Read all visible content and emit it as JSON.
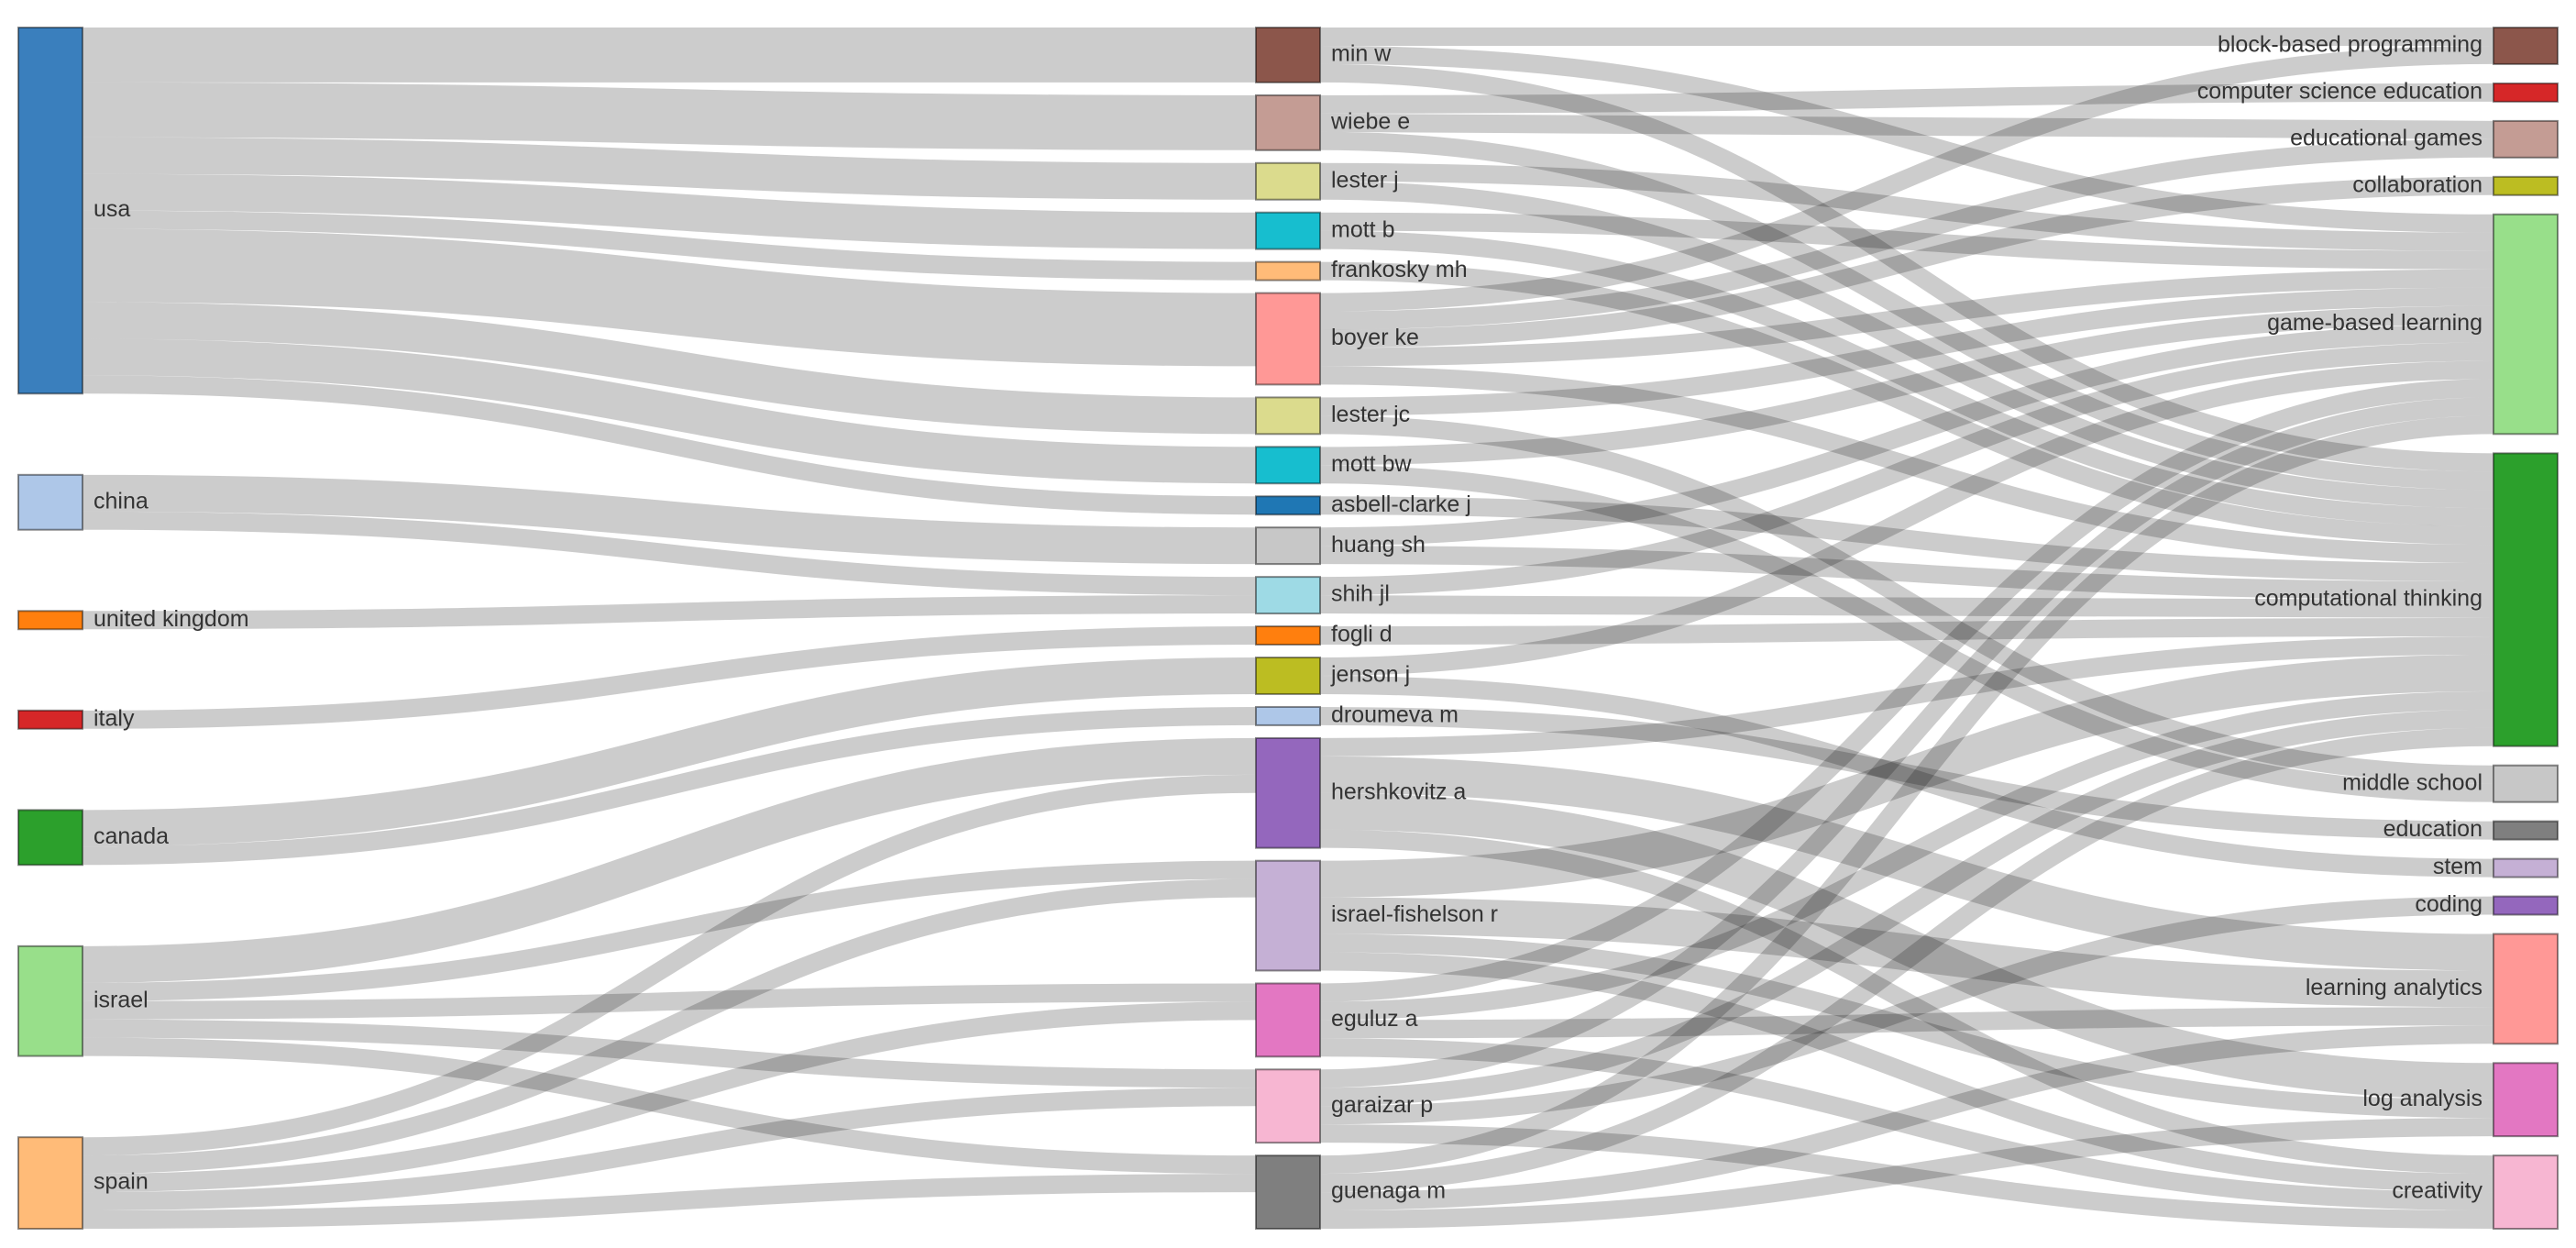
{
  "chart_data": {
    "type": "sankey",
    "columns": [
      [
        {
          "label": "usa",
          "color": "#3a7fbd"
        },
        {
          "label": "china",
          "color": "#aec7e8"
        },
        {
          "label": "united kingdom",
          "color": "#ff7f0e"
        },
        {
          "label": "italy",
          "color": "#d62728"
        },
        {
          "label": "canada",
          "color": "#2ca02c"
        },
        {
          "label": "israel",
          "color": "#98df8a"
        },
        {
          "label": "spain",
          "color": "#ffbb78"
        }
      ],
      [
        {
          "label": "min w",
          "color": "#8c564b"
        },
        {
          "label": "wiebe e",
          "color": "#c49c94"
        },
        {
          "label": "lester j",
          "color": "#dbdb8d"
        },
        {
          "label": "mott b",
          "color": "#17becf"
        },
        {
          "label": "frankosky mh",
          "color": "#ffbb78"
        },
        {
          "label": "boyer ke",
          "color": "#ff9896"
        },
        {
          "label": "lester jc",
          "color": "#dbdb8d"
        },
        {
          "label": "mott bw",
          "color": "#17becf"
        },
        {
          "label": "asbell-clarke j",
          "color": "#1f77b4"
        },
        {
          "label": "huang sh",
          "color": "#c7c7c7"
        },
        {
          "label": "shih jl",
          "color": "#9edae5"
        },
        {
          "label": "fogli d",
          "color": "#ff7f0e"
        },
        {
          "label": "jenson j",
          "color": "#bcbd22"
        },
        {
          "label": "droumeva m",
          "color": "#aec7e8"
        },
        {
          "label": "hershkovitz a",
          "color": "#9467bd"
        },
        {
          "label": "israel-fishelson r",
          "color": "#c5b0d5"
        },
        {
          "label": "eguluz a",
          "color": "#e377c2"
        },
        {
          "label": "garaizar p",
          "color": "#f7b6d2"
        },
        {
          "label": "guenaga m",
          "color": "#7f7f7f"
        }
      ],
      [
        {
          "label": "block-based programming",
          "color": "#8c564b"
        },
        {
          "label": "computer science education",
          "color": "#d62728"
        },
        {
          "label": "educational games",
          "color": "#c49c94"
        },
        {
          "label": "collaboration",
          "color": "#bcbd22"
        },
        {
          "label": "game-based learning",
          "color": "#98df8a"
        },
        {
          "label": "computational thinking",
          "color": "#2ca02c"
        },
        {
          "label": "middle school",
          "color": "#c7c7c7"
        },
        {
          "label": "education",
          "color": "#7f7f7f"
        },
        {
          "label": "stem",
          "color": "#c5b0d5"
        },
        {
          "label": "coding",
          "color": "#9467bd"
        },
        {
          "label": "learning analytics",
          "color": "#ff9896"
        },
        {
          "label": "log analysis",
          "color": "#e377c2"
        },
        {
          "label": "creativity",
          "color": "#f7b6d2"
        }
      ]
    ],
    "links": [
      {
        "source": "usa",
        "target": "min w",
        "value": 3
      },
      {
        "source": "usa",
        "target": "wiebe e",
        "value": 3
      },
      {
        "source": "usa",
        "target": "lester j",
        "value": 2
      },
      {
        "source": "usa",
        "target": "mott b",
        "value": 2
      },
      {
        "source": "usa",
        "target": "frankosky mh",
        "value": 1
      },
      {
        "source": "usa",
        "target": "boyer ke",
        "value": 4
      },
      {
        "source": "usa",
        "target": "lester jc",
        "value": 2
      },
      {
        "source": "usa",
        "target": "mott bw",
        "value": 2
      },
      {
        "source": "usa",
        "target": "asbell-clarke j",
        "value": 1
      },
      {
        "source": "china",
        "target": "huang sh",
        "value": 2
      },
      {
        "source": "china",
        "target": "shih jl",
        "value": 1
      },
      {
        "source": "united kingdom",
        "target": "shih jl",
        "value": 1
      },
      {
        "source": "italy",
        "target": "fogli d",
        "value": 1
      },
      {
        "source": "canada",
        "target": "jenson j",
        "value": 2
      },
      {
        "source": "canada",
        "target": "droumeva m",
        "value": 1
      },
      {
        "source": "israel",
        "target": "hershkovitz a",
        "value": 2
      },
      {
        "source": "israel",
        "target": "israel-fishelson r",
        "value": 1
      },
      {
        "source": "israel",
        "target": "eguluz a",
        "value": 1
      },
      {
        "source": "israel",
        "target": "garaizar p",
        "value": 1
      },
      {
        "source": "israel",
        "target": "guenaga m",
        "value": 1
      },
      {
        "source": "spain",
        "target": "hershkovitz a",
        "value": 1
      },
      {
        "source": "spain",
        "target": "israel-fishelson r",
        "value": 1
      },
      {
        "source": "spain",
        "target": "eguluz a",
        "value": 1
      },
      {
        "source": "spain",
        "target": "garaizar p",
        "value": 1
      },
      {
        "source": "spain",
        "target": "guenaga m",
        "value": 1
      },
      {
        "source": "min w",
        "target": "block-based programming",
        "value": 1
      },
      {
        "source": "min w",
        "target": "game-based learning",
        "value": 1
      },
      {
        "source": "min w",
        "target": "computational thinking",
        "value": 1
      },
      {
        "source": "wiebe e",
        "target": "computer science education",
        "value": 1
      },
      {
        "source": "wiebe e",
        "target": "educational games",
        "value": 1
      },
      {
        "source": "wiebe e",
        "target": "computational thinking",
        "value": 1
      },
      {
        "source": "lester j",
        "target": "game-based learning",
        "value": 1
      },
      {
        "source": "lester j",
        "target": "computational thinking",
        "value": 1
      },
      {
        "source": "mott b",
        "target": "game-based learning",
        "value": 1
      },
      {
        "source": "mott b",
        "target": "computational thinking",
        "value": 1
      },
      {
        "source": "frankosky mh",
        "target": "computational thinking",
        "value": 1
      },
      {
        "source": "boyer ke",
        "target": "block-based programming",
        "value": 1
      },
      {
        "source": "boyer ke",
        "target": "educational games",
        "value": 1
      },
      {
        "source": "boyer ke",
        "target": "collaboration",
        "value": 1
      },
      {
        "source": "boyer ke",
        "target": "game-based learning",
        "value": 1
      },
      {
        "source": "boyer ke",
        "target": "computational thinking",
        "value": 1
      },
      {
        "source": "lester jc",
        "target": "game-based learning",
        "value": 1
      },
      {
        "source": "lester jc",
        "target": "middle school",
        "value": 1
      },
      {
        "source": "mott bw",
        "target": "game-based learning",
        "value": 1
      },
      {
        "source": "mott bw",
        "target": "middle school",
        "value": 1
      },
      {
        "source": "asbell-clarke j",
        "target": "computational thinking",
        "value": 1
      },
      {
        "source": "huang sh",
        "target": "game-based learning",
        "value": 1
      },
      {
        "source": "huang sh",
        "target": "computational thinking",
        "value": 1
      },
      {
        "source": "shih jl",
        "target": "game-based learning",
        "value": 1
      },
      {
        "source": "shih jl",
        "target": "computational thinking",
        "value": 1
      },
      {
        "source": "fogli d",
        "target": "computational thinking",
        "value": 1
      },
      {
        "source": "jenson j",
        "target": "game-based learning",
        "value": 1
      },
      {
        "source": "jenson j",
        "target": "stem",
        "value": 1
      },
      {
        "source": "droumeva m",
        "target": "education",
        "value": 1
      },
      {
        "source": "hershkovitz a",
        "target": "computational thinking",
        "value": 1
      },
      {
        "source": "hershkovitz a",
        "target": "learning analytics",
        "value": 2
      },
      {
        "source": "hershkovitz a",
        "target": "log analysis",
        "value": 2
      },
      {
        "source": "hershkovitz a",
        "target": "creativity",
        "value": 1
      },
      {
        "source": "israel-fishelson r",
        "target": "computational thinking",
        "value": 2
      },
      {
        "source": "israel-fishelson r",
        "target": "learning analytics",
        "value": 2
      },
      {
        "source": "israel-fishelson r",
        "target": "log analysis",
        "value": 1
      },
      {
        "source": "israel-fishelson r",
        "target": "creativity",
        "value": 1
      },
      {
        "source": "eguluz a",
        "target": "computational thinking",
        "value": 1
      },
      {
        "source": "eguluz a",
        "target": "game-based learning",
        "value": 1
      },
      {
        "source": "eguluz a",
        "target": "learning analytics",
        "value": 1
      },
      {
        "source": "eguluz a",
        "target": "creativity",
        "value": 1
      },
      {
        "source": "garaizar p",
        "target": "computational thinking",
        "value": 1
      },
      {
        "source": "garaizar p",
        "target": "game-based learning",
        "value": 1
      },
      {
        "source": "garaizar p",
        "target": "coding",
        "value": 1
      },
      {
        "source": "garaizar p",
        "target": "creativity",
        "value": 1
      },
      {
        "source": "guenaga m",
        "target": "computational thinking",
        "value": 1
      },
      {
        "source": "guenaga m",
        "target": "game-based learning",
        "value": 1
      },
      {
        "source": "guenaga m",
        "target": "learning analytics",
        "value": 1
      },
      {
        "source": "guenaga m",
        "target": "log analysis",
        "value": 1
      }
    ]
  }
}
